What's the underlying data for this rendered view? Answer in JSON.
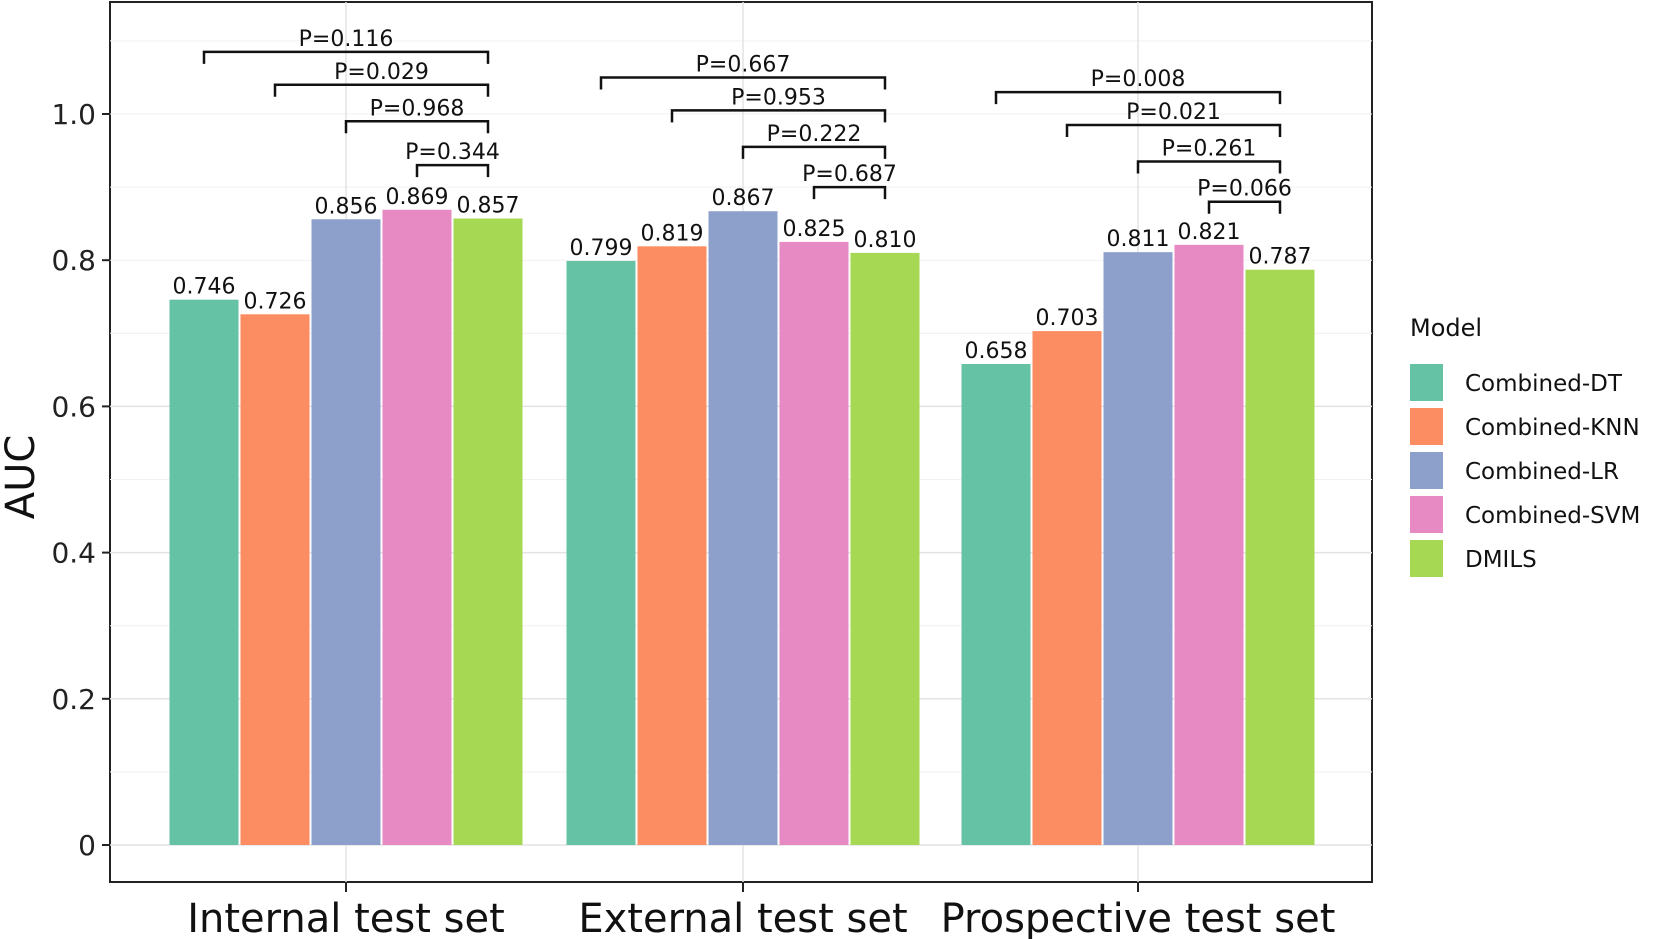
{
  "chart_data": {
    "type": "bar",
    "categories": [
      "Internal test set",
      "External test set",
      "Prospective test set"
    ],
    "series": [
      {
        "name": "Combined-DT",
        "values": [
          0.746,
          0.799,
          0.658
        ],
        "labels": [
          "0.746",
          "0.799",
          "0.658"
        ]
      },
      {
        "name": "Combined-KNN",
        "values": [
          0.726,
          0.819,
          0.703
        ],
        "labels": [
          "0.726",
          "0.819",
          "0.703"
        ]
      },
      {
        "name": "Combined-LR",
        "values": [
          0.856,
          0.867,
          0.811
        ],
        "labels": [
          "0.856",
          "0.867",
          "0.811"
        ]
      },
      {
        "name": "Combined-SVM",
        "values": [
          0.869,
          0.825,
          0.821
        ],
        "labels": [
          "0.869",
          "0.825",
          "0.821"
        ]
      },
      {
        "name": "DMILS",
        "values": [
          0.857,
          0.81,
          0.787
        ],
        "labels": [
          "0.857",
          "0.810",
          "0.787"
        ]
      }
    ],
    "colors": [
      "#66c2a5",
      "#fc8d62",
      "#8da0cb",
      "#e78ac3",
      "#a6d854"
    ],
    "ylabel": "AUC",
    "xlabel": "",
    "ylim": [
      0,
      1.1
    ],
    "yticks": [
      0,
      0.2,
      0.4,
      0.6,
      0.8,
      1.0
    ],
    "ytick_labels": [
      "0",
      "0.2",
      "0.4",
      "0.6",
      "0.8",
      "1.0"
    ],
    "grid": true,
    "legend": {
      "title": "Model",
      "position": "right"
    },
    "comparisons": [
      {
        "category": 0,
        "from": 0,
        "to": 4,
        "label": "P=0.116",
        "level": 1.085
      },
      {
        "category": 0,
        "from": 1,
        "to": 4,
        "label": "P=0.029",
        "level": 1.04
      },
      {
        "category": 0,
        "from": 2,
        "to": 4,
        "label": "P=0.968",
        "level": 0.99
      },
      {
        "category": 0,
        "from": 3,
        "to": 4,
        "label": "P=0.344",
        "level": 0.93
      },
      {
        "category": 1,
        "from": 0,
        "to": 4,
        "label": "P=0.667",
        "level": 1.05
      },
      {
        "category": 1,
        "from": 1,
        "to": 4,
        "label": "P=0.953",
        "level": 1.005
      },
      {
        "category": 1,
        "from": 2,
        "to": 4,
        "label": "P=0.222",
        "level": 0.955
      },
      {
        "category": 1,
        "from": 3,
        "to": 4,
        "label": "P=0.687",
        "level": 0.9
      },
      {
        "category": 2,
        "from": 0,
        "to": 4,
        "label": "P=0.008",
        "level": 1.03
      },
      {
        "category": 2,
        "from": 1,
        "to": 4,
        "label": "P=0.021",
        "level": 0.985
      },
      {
        "category": 2,
        "from": 2,
        "to": 4,
        "label": "P=0.261",
        "level": 0.935
      },
      {
        "category": 2,
        "from": 3,
        "to": 4,
        "label": "P=0.066",
        "level": 0.88
      }
    ]
  }
}
